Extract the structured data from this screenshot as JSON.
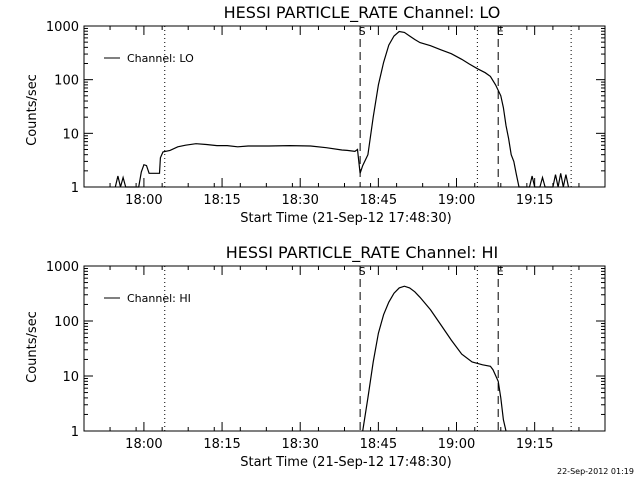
{
  "footer": {
    "timestamp": "22-Sep-2012 01:19"
  },
  "chart_data": [
    {
      "type": "line",
      "title": "HESSI PARTICLE_RATE Channel: LO",
      "xlabel": "Start Time (21-Sep-12 17:48:30)",
      "ylabel": "Counts/sec",
      "y_scale": "log",
      "ylim": [
        1,
        1000
      ],
      "xlim": [
        "17:48:30",
        "19:28:30"
      ],
      "x_ticks": [
        "18:00",
        "18:15",
        "18:30",
        "18:45",
        "19:00",
        "19:15"
      ],
      "y_ticks": [
        "1",
        "10",
        "100",
        "1000"
      ],
      "legend": {
        "position": "top-left",
        "entries": [
          "Channel: LO"
        ]
      },
      "series": [
        {
          "name": "Channel: LO",
          "points": [
            [
              "17:54:30",
              1
            ],
            [
              "17:55:00",
              1.6
            ],
            [
              "17:55:30",
              1
            ],
            [
              "17:56:00",
              1.5
            ],
            [
              "17:56:30",
              1
            ],
            [
              "17:59:00",
              1
            ],
            [
              "17:59:30",
              1.9
            ],
            [
              "18:00:00",
              2.6
            ],
            [
              "18:00:30",
              2.5
            ],
            [
              "18:01:00",
              1.8
            ],
            [
              "18:03:00",
              1.8
            ],
            [
              "18:03:10",
              3.5
            ],
            [
              "18:03:40",
              4.5
            ],
            [
              "18:05:00",
              4.8
            ],
            [
              "18:06:30",
              5.6
            ],
            [
              "18:08:00",
              6.0
            ],
            [
              "18:10:00",
              6.4
            ],
            [
              "18:12:00",
              6.2
            ],
            [
              "18:14:00",
              5.9
            ],
            [
              "18:16:00",
              5.9
            ],
            [
              "18:18:00",
              5.6
            ],
            [
              "18:20:00",
              5.8
            ],
            [
              "18:24:00",
              5.8
            ],
            [
              "18:28:00",
              5.9
            ],
            [
              "18:32:00",
              5.8
            ],
            [
              "18:35:00",
              5.4
            ],
            [
              "18:38:00",
              4.9
            ],
            [
              "18:39:00",
              4.8
            ],
            [
              "18:40:30",
              4.6
            ],
            [
              "18:41:00",
              5.0
            ],
            [
              "18:41:30",
              1.8
            ],
            [
              "18:42:00",
              2.5
            ],
            [
              "18:43:00",
              4.0
            ],
            [
              "18:44:00",
              20
            ],
            [
              "18:45:00",
              80
            ],
            [
              "18:46:00",
              210
            ],
            [
              "18:47:00",
              440
            ],
            [
              "18:48:00",
              650
            ],
            [
              "18:49:00",
              790
            ],
            [
              "18:50:00",
              760
            ],
            [
              "18:51:00",
              650
            ],
            [
              "18:52:00",
              560
            ],
            [
              "18:53:00",
              490
            ],
            [
              "18:55:00",
              430
            ],
            [
              "18:57:00",
              360
            ],
            [
              "18:59:00",
              305
            ],
            [
              "19:01:00",
              240
            ],
            [
              "19:02:30",
              195
            ],
            [
              "19:04:00",
              160
            ],
            [
              "19:05:30",
              135
            ],
            [
              "19:06:30",
              115
            ],
            [
              "19:07:30",
              80
            ],
            [
              "19:08:30",
              50
            ],
            [
              "19:09:00",
              30
            ],
            [
              "19:09:30",
              14
            ],
            [
              "19:10:00",
              8
            ],
            [
              "19:10:30",
              4
            ],
            [
              "19:11:00",
              3
            ],
            [
              "19:11:30",
              1.7
            ],
            [
              "19:12:00",
              1
            ],
            [
              "19:14:00",
              1
            ],
            [
              "19:14:30",
              1.6
            ],
            [
              "19:15:00",
              1
            ],
            [
              "19:16:00",
              1
            ],
            [
              "19:16:30",
              1.5
            ],
            [
              "19:17:00",
              1
            ],
            [
              "19:18:30",
              1
            ],
            [
              "19:19:00",
              1.7
            ],
            [
              "19:19:30",
              1
            ],
            [
              "19:20:00",
              1.8
            ],
            [
              "19:20:30",
              1
            ],
            [
              "19:21:00",
              1.7
            ],
            [
              "19:21:30",
              1
            ]
          ]
        }
      ],
      "vlines_dotted": [
        "18:04:00",
        "19:04:00",
        "19:22:00"
      ],
      "vlines_dashed": [
        {
          "t": "18:41:30",
          "label": "S"
        },
        {
          "t": "19:08:00",
          "label": "E"
        }
      ]
    },
    {
      "type": "line",
      "title": "HESSI PARTICLE_RATE Channel: HI",
      "xlabel": "Start Time (21-Sep-12 17:48:30)",
      "ylabel": "Counts/sec",
      "y_scale": "log",
      "ylim": [
        1,
        1000
      ],
      "xlim": [
        "17:48:30",
        "19:28:30"
      ],
      "x_ticks": [
        "18:00",
        "18:15",
        "18:30",
        "18:45",
        "19:00",
        "19:15"
      ],
      "y_ticks": [
        "1",
        "10",
        "100",
        "1000"
      ],
      "legend": {
        "position": "top-left",
        "entries": [
          "Channel: HI"
        ]
      },
      "series": [
        {
          "name": "Channel: HI",
          "points": [
            [
              "18:42:00",
              1
            ],
            [
              "18:43:00",
              4
            ],
            [
              "18:44:00",
              18
            ],
            [
              "18:45:00",
              60
            ],
            [
              "18:46:00",
              130
            ],
            [
              "18:47:00",
              220
            ],
            [
              "18:48:00",
              320
            ],
            [
              "18:49:00",
              400
            ],
            [
              "18:50:00",
              430
            ],
            [
              "18:51:00",
              400
            ],
            [
              "18:52:00",
              340
            ],
            [
              "18:53:00",
              270
            ],
            [
              "18:55:00",
              160
            ],
            [
              "18:57:00",
              85
            ],
            [
              "18:59:00",
              45
            ],
            [
              "19:01:00",
              25
            ],
            [
              "19:03:00",
              18
            ],
            [
              "19:05:00",
              16
            ],
            [
              "19:06:30",
              15
            ],
            [
              "19:07:00",
              13
            ],
            [
              "19:08:00",
              8
            ],
            [
              "19:08:30",
              4
            ],
            [
              "19:09:00",
              1.6
            ],
            [
              "19:09:30",
              1
            ]
          ]
        }
      ],
      "vlines_dotted": [
        "18:04:00",
        "19:04:00",
        "19:22:00"
      ],
      "vlines_dashed": [
        {
          "t": "18:41:30",
          "label": "S"
        },
        {
          "t": "19:08:00",
          "label": "E"
        }
      ]
    }
  ]
}
